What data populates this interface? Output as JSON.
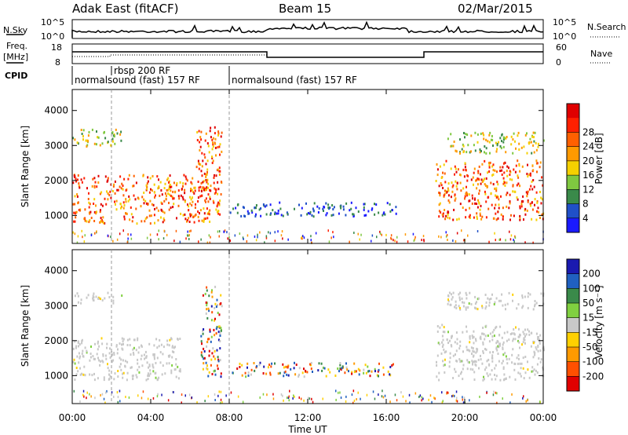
{
  "header": {
    "title_left": "Adak East (fitACF)",
    "title_center": "Beam 15",
    "title_right": "02/Mar/2015"
  },
  "top_panels": {
    "nsky_label": "N.Sky",
    "nsky_ticks": [
      "10^5",
      "10^0"
    ],
    "nsearch_label": "N.Search",
    "freq_label_1": "Freq.",
    "freq_label_2": "[MHz]",
    "freq_ticks": [
      "18",
      "8"
    ],
    "nave_label": "Nave",
    "nave_ticks": [
      "60",
      "0"
    ],
    "cpid_label": "CPID",
    "cpid_segments": [
      {
        "label": "normalsound (fast) 157 RF",
        "start_hour": 0
      },
      {
        "label": "rbsp 200 RF",
        "start_hour": 2
      },
      {
        "label": "normalsound (fast) 157 RF",
        "start_hour": 8
      }
    ]
  },
  "chart_data": [
    {
      "type": "heatmap",
      "panel": "power",
      "ylabel": "Slant Range [km]",
      "xlabel": "Time UT",
      "xlim_hours": [
        0,
        24
      ],
      "ylim_km": [
        200,
        4600
      ],
      "y_ticks": [
        1000,
        2000,
        3000,
        4000
      ],
      "x_ticks": [
        "00:00",
        "04:00",
        "08:00",
        "12:00",
        "16:00",
        "20:00",
        "00:00"
      ],
      "colorbar_label": "Power [dB]",
      "colorbar_ticks": [
        "4",
        "8",
        "12",
        "16",
        "20",
        "24",
        "28"
      ],
      "colorbar_colors": [
        "#1a1aff",
        "#2050c8",
        "#3a8a4a",
        "#7fc840",
        "#f5d000",
        "#ff9a00",
        "#ff6000",
        "#ff2000",
        "#e00000"
      ],
      "scatter_regions": [
        {
          "t0": 0,
          "t1": 7,
          "r0": 800,
          "r1": 2200,
          "level": "high"
        },
        {
          "t0": 0,
          "t1": 2.5,
          "r0": 3000,
          "r1": 3500,
          "level": "mid"
        },
        {
          "t0": 6.3,
          "t1": 7.6,
          "r0": 1000,
          "r1": 3600,
          "level": "high"
        },
        {
          "t0": 8,
          "t1": 16.5,
          "r0": 1000,
          "r1": 1400,
          "level": "low"
        },
        {
          "t0": 18.5,
          "t1": 24,
          "r0": 900,
          "r1": 2600,
          "level": "high"
        },
        {
          "t0": 19,
          "t1": 24,
          "r0": 2800,
          "r1": 3400,
          "level": "mid"
        }
      ]
    },
    {
      "type": "heatmap",
      "panel": "velocity",
      "ylabel": "Slant Range [km]",
      "xlabel": "Time UT",
      "xlim_hours": [
        0,
        24
      ],
      "ylim_km": [
        200,
        4600
      ],
      "y_ticks": [
        1000,
        2000,
        3000,
        4000
      ],
      "x_ticks": [
        "00:00",
        "04:00",
        "08:00",
        "12:00",
        "16:00",
        "20:00",
        "00:00"
      ],
      "colorbar_label": "Velocity [m s⁻¹]",
      "colorbar_ticks": [
        "200",
        "100",
        "50",
        "15",
        "-15",
        "-50",
        "-100",
        "-200"
      ],
      "colorbar_colors": [
        "#1a1ab0",
        "#2060c0",
        "#3a8a4a",
        "#80d040",
        "#c8c8c8",
        "#ffd000",
        "#ff9a00",
        "#ff5000",
        "#e00000"
      ],
      "scatter_regions": [
        {
          "t0": 0,
          "t1": 5.5,
          "r0": 900,
          "r1": 2100,
          "level": "gray"
        },
        {
          "t0": 0,
          "t1": 2.5,
          "r0": 3100,
          "r1": 3400,
          "level": "gray"
        },
        {
          "t0": 6.5,
          "t1": 7.6,
          "r0": 1000,
          "r1": 3600,
          "level": "mixed"
        },
        {
          "t0": 8,
          "t1": 16.5,
          "r0": 1000,
          "r1": 1400,
          "level": "mixed"
        },
        {
          "t0": 18.5,
          "t1": 24,
          "r0": 900,
          "r1": 2500,
          "level": "gray"
        },
        {
          "t0": 19,
          "t1": 24,
          "r0": 2900,
          "r1": 3400,
          "level": "gray"
        }
      ]
    }
  ]
}
